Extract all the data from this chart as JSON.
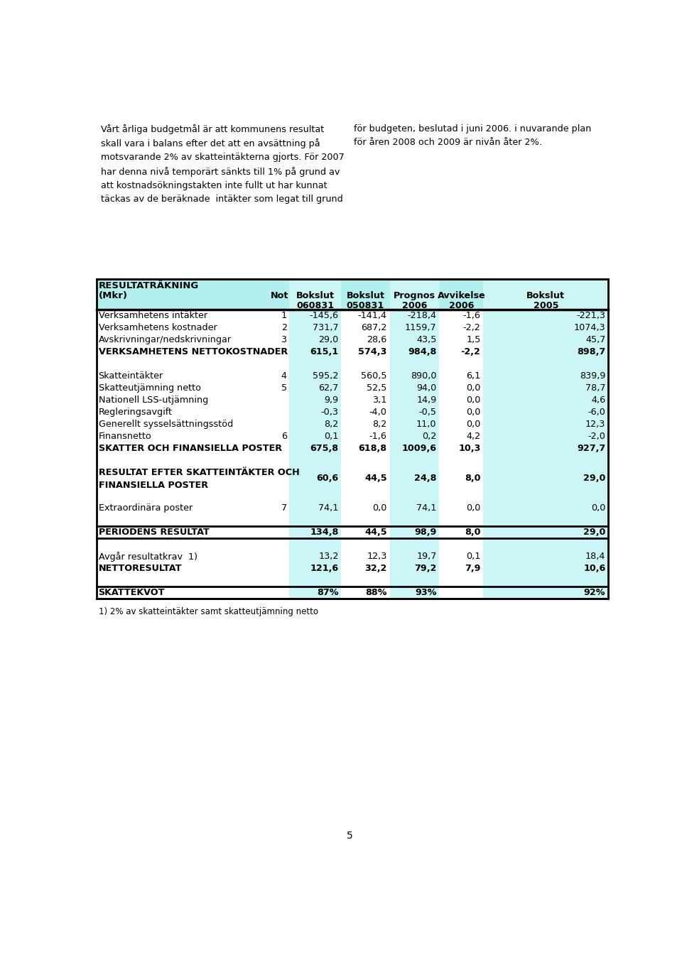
{
  "page_text_left": "Vårt årliga budgetmål är att kommunens resultat\nskall vara i balans efter det att en avsättning på\nmotsvarande 2% av skatteintäkterna gjorts. För 2007\nhar denna nivå temporärt sänkts till 1% på grund av\natt kostnadsökningstakten inte fullt ut har kunnat\ntäckas av de beräknade  intäkter som legat till grund",
  "page_text_right": "för budgeten, beslutad i juni 2006. i nuvarande plan\nför åren 2008 och 2009 är nivån åter 2%.",
  "table_title_line1": "RESULTATRÄKNING",
  "table_title_line2": "(Mkr)",
  "header_row1": [
    "Not",
    "Bokslut",
    "Bokslut",
    "Prognos",
    "Avvikelse",
    "Bokslut"
  ],
  "header_row2": [
    "",
    "060831",
    "050831",
    "2006",
    "2006",
    "2005"
  ],
  "header_bg": "#b2f0f0",
  "col_bg": "#ccf5f5",
  "rows": [
    {
      "label": "Verksamhetens intäkter",
      "not": "1",
      "v1": "-145,6",
      "v2": "-141,4",
      "v3": "-218,4",
      "v4": "-1,6",
      "v5": "-221,3",
      "bold": false,
      "sep_before": false,
      "sep_after": false
    },
    {
      "label": "Verksamhetens kostnader",
      "not": "2",
      "v1": "731,7",
      "v2": "687,2",
      "v3": "1159,7",
      "v4": "-2,2",
      "v5": "1074,3",
      "bold": false,
      "sep_before": false,
      "sep_after": false
    },
    {
      "label": "Avskrivningar/nedskrivningar",
      "not": "3",
      "v1": "29,0",
      "v2": "28,6",
      "v3": "43,5",
      "v4": "1,5",
      "v5": "45,7",
      "bold": false,
      "sep_before": false,
      "sep_after": false
    },
    {
      "label": "VERKSAMHETENS NETTOKOSTNADER",
      "not": "",
      "v1": "615,1",
      "v2": "574,3",
      "v3": "984,8",
      "v4": "-2,2",
      "v5": "898,7",
      "bold": true,
      "sep_before": false,
      "sep_after": false
    },
    {
      "label": "",
      "not": "",
      "v1": "",
      "v2": "",
      "v3": "",
      "v4": "",
      "v5": "",
      "bold": false,
      "sep_before": false,
      "sep_after": false
    },
    {
      "label": "Skatteintäkter",
      "not": "4",
      "v1": "595,2",
      "v2": "560,5",
      "v3": "890,0",
      "v4": "6,1",
      "v5": "839,9",
      "bold": false,
      "sep_before": false,
      "sep_after": false
    },
    {
      "label": "Skatteutjämning netto",
      "not": "5",
      "v1": "62,7",
      "v2": "52,5",
      "v3": "94,0",
      "v4": "0,0",
      "v5": "78,7",
      "bold": false,
      "sep_before": false,
      "sep_after": false
    },
    {
      "label": "Nationell LSS-utjämning",
      "not": "",
      "v1": "9,9",
      "v2": "3,1",
      "v3": "14,9",
      "v4": "0,0",
      "v5": "4,6",
      "bold": false,
      "sep_before": false,
      "sep_after": false
    },
    {
      "label": "Regleringsavgift",
      "not": "",
      "v1": "-0,3",
      "v2": "-4,0",
      "v3": "-0,5",
      "v4": "0,0",
      "v5": "-6,0",
      "bold": false,
      "sep_before": false,
      "sep_after": false
    },
    {
      "label": "Generellt sysselsättningsstöd",
      "not": "",
      "v1": "8,2",
      "v2": "8,2",
      "v3": "11,0",
      "v4": "0,0",
      "v5": "12,3",
      "bold": false,
      "sep_before": false,
      "sep_after": false
    },
    {
      "label": "Finansnetto",
      "not": "6",
      "v1": "0,1",
      "v2": "-1,6",
      "v3": "0,2",
      "v4": "4,2",
      "v5": "-2,0",
      "bold": false,
      "sep_before": false,
      "sep_after": false
    },
    {
      "label": "SKATTER OCH FINANSIELLA POSTER",
      "not": "",
      "v1": "675,8",
      "v2": "618,8",
      "v3": "1009,6",
      "v4": "10,3",
      "v5": "927,7",
      "bold": true,
      "sep_before": false,
      "sep_after": false
    },
    {
      "label": "",
      "not": "",
      "v1": "",
      "v2": "",
      "v3": "",
      "v4": "",
      "v5": "",
      "bold": false,
      "sep_before": false,
      "sep_after": false
    },
    {
      "label": "RESULTAT EFTER SKATTEINTÄKTER OCH\nFINANSIELLA POSTER",
      "not": "",
      "v1": "60,6",
      "v2": "44,5",
      "v3": "24,8",
      "v4": "8,0",
      "v5": "29,0",
      "bold": true,
      "sep_before": false,
      "sep_after": false
    },
    {
      "label": "",
      "not": "",
      "v1": "",
      "v2": "",
      "v3": "",
      "v4": "",
      "v5": "",
      "bold": false,
      "sep_before": false,
      "sep_after": false
    },
    {
      "label": "Extraordinära poster",
      "not": "7",
      "v1": "74,1",
      "v2": "0,0",
      "v3": "74,1",
      "v4": "0,0",
      "v5": "0,0",
      "bold": false,
      "sep_before": false,
      "sep_after": false
    },
    {
      "label": "",
      "not": "",
      "v1": "",
      "v2": "",
      "v3": "",
      "v4": "",
      "v5": "",
      "bold": false,
      "sep_before": false,
      "sep_after": false
    },
    {
      "label": "PERIODENS RESULTAT",
      "not": "",
      "v1": "134,8",
      "v2": "44,5",
      "v3": "98,9",
      "v4": "8,0",
      "v5": "29,0",
      "bold": true,
      "sep_before": true,
      "sep_after": true
    },
    {
      "label": "",
      "not": "",
      "v1": "",
      "v2": "",
      "v3": "",
      "v4": "",
      "v5": "",
      "bold": false,
      "sep_before": false,
      "sep_after": false
    },
    {
      "label": "Avgår resultatkrav  1)",
      "not": "",
      "v1": "13,2",
      "v2": "12,3",
      "v3": "19,7",
      "v4": "0,1",
      "v5": "18,4",
      "bold": false,
      "sep_before": false,
      "sep_after": false
    },
    {
      "label": "NETTORESULTAT",
      "not": "",
      "v1": "121,6",
      "v2": "32,2",
      "v3": "79,2",
      "v4": "7,9",
      "v5": "10,6",
      "bold": true,
      "sep_before": false,
      "sep_after": false
    },
    {
      "label": "",
      "not": "",
      "v1": "",
      "v2": "",
      "v3": "",
      "v4": "",
      "v5": "",
      "bold": false,
      "sep_before": false,
      "sep_after": false
    },
    {
      "label": "SKATTEKVOT",
      "not": "",
      "v1": "87%",
      "v2": "88%",
      "v3": "93%",
      "v4": "",
      "v5": "92%",
      "bold": true,
      "sep_before": true,
      "sep_after": true
    }
  ],
  "footnote": "1) 2% av skatteintäkter samt skatteutjämning netto",
  "page_number": "5",
  "text_color": "#000000",
  "border_color": "#000000"
}
